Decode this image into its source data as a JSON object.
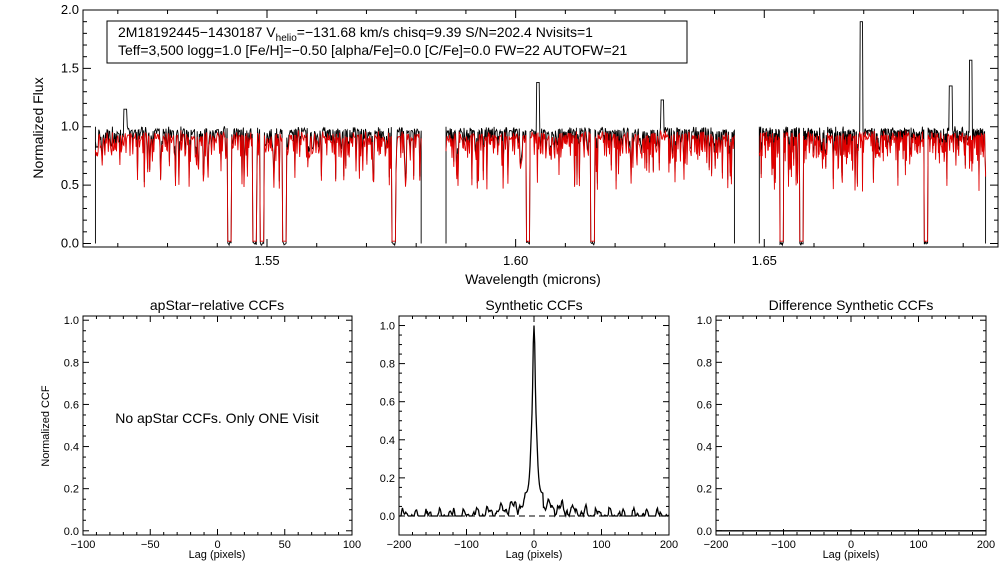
{
  "info": {
    "line1_prefix": "2M18192445−1430187  V",
    "line1_sub": "helio",
    "line1_rest": "=−131.68 km/s  chisq=9.39  S/N=202.4  Nvisits=1",
    "line2": "Teff=3,500 logg=1.0 [Fe/H]=−0.50 [alpha/Fe]=0.0 [C/Fe]=0.0 FW=22 AUTOFW=21"
  },
  "colors": {
    "observed": "#000000",
    "model": "#e00000",
    "axis": "#000000",
    "zero_line": "#000000"
  },
  "chart_data": [
    {
      "type": "line",
      "name": "spectrum",
      "xlabel": "Wavelength (microns)",
      "ylabel": "Normalized Flux",
      "xlim": [
        1.513,
        1.697
      ],
      "ylim": [
        -0.03,
        2.0
      ],
      "xticks": [
        1.55,
        1.6,
        1.65
      ],
      "xtick_labels": [
        "1.55",
        "1.60",
        "1.65"
      ],
      "yticks": [
        0.0,
        0.5,
        1.0,
        1.5,
        2.0
      ],
      "ytick_labels": [
        "0.0",
        "0.5",
        "1.0",
        "1.5",
        "2.0"
      ],
      "chips": [
        [
          1.5155,
          1.581
        ],
        [
          1.586,
          1.644
        ],
        [
          1.649,
          1.6945
        ]
      ],
      "series": [
        {
          "name": "observed",
          "color": "#000000",
          "continuum": 1.0
        },
        {
          "name": "model",
          "color": "#e00000",
          "continuum": 0.97
        }
      ],
      "deep_lines": [
        1.5425,
        1.5475,
        1.549,
        1.5535,
        1.5755,
        1.6025,
        1.6155,
        1.6535,
        1.6575,
        1.6825
      ],
      "emission_peaks": [
        [
          1.5215,
          1.15
        ],
        [
          1.6045,
          1.38
        ],
        [
          1.6295,
          1.23
        ],
        [
          1.6695,
          1.9
        ],
        [
          1.6875,
          1.35
        ],
        [
          1.6915,
          1.57
        ]
      ]
    },
    {
      "type": "line",
      "name": "apstar-ccf",
      "title": "apStar−relative CCFs",
      "xlabel": "Lag (pixels)",
      "ylabel": "Normalized CCF",
      "xlim": [
        -100,
        100
      ],
      "ylim": [
        -0.02,
        1.02
      ],
      "xticks": [
        -100,
        -50,
        0,
        50,
        100
      ],
      "xtick_labels": [
        "−100",
        "−50",
        "0",
        "50",
        "100"
      ],
      "yticks": [
        0.0,
        0.2,
        0.4,
        0.6,
        0.8,
        1.0
      ],
      "ytick_labels": [
        "0.0",
        "0.2",
        "0.4",
        "0.6",
        "0.8",
        "1.0"
      ],
      "series": [],
      "annotation": "No apStar CCFs.  Only ONE Visit"
    },
    {
      "type": "line",
      "name": "synthetic-ccf",
      "title": "Synthetic CCFs",
      "xlabel": "Lag (pixels)",
      "xlim": [
        -200,
        200
      ],
      "ylim": [
        -0.1,
        1.05
      ],
      "xticks": [
        -200,
        -100,
        0,
        100,
        200
      ],
      "xtick_labels": [
        "−200",
        "−100",
        "0",
        "100",
        "200"
      ],
      "yticks": [
        0.0,
        0.2,
        0.4,
        0.6,
        0.8,
        1.0
      ],
      "ytick_labels": [
        "0.0",
        "0.2",
        "0.4",
        "0.6",
        "0.8",
        "1.0"
      ],
      "peak_lag": 0,
      "peak_value": 1.0,
      "baseline": 0.0,
      "series": [
        {
          "name": "ccf",
          "color": "#000000"
        }
      ]
    },
    {
      "type": "line",
      "name": "difference-ccf",
      "title": "Difference Synthetic CCFs",
      "xlabel": "Lag (pixels)",
      "xlim": [
        -200,
        200
      ],
      "ylim": [
        -0.02,
        1.02
      ],
      "xticks": [
        -200,
        -100,
        0,
        100,
        200
      ],
      "xtick_labels": [
        "−200",
        "−100",
        "0",
        "100",
        "200"
      ],
      "yticks": [
        0.0,
        0.2,
        0.4,
        0.6,
        0.8,
        1.0
      ],
      "ytick_labels": [
        "0.0",
        "0.2",
        "0.4",
        "0.6",
        "0.8",
        "1.0"
      ],
      "series": [
        {
          "name": "difference",
          "color": "#000000",
          "value": 0.0
        }
      ]
    }
  ]
}
